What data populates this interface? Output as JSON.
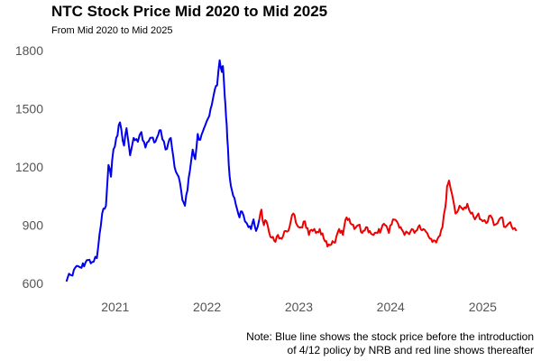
{
  "chart_data": {
    "type": "line",
    "title": "NTC Stock Price Mid 2020 to Mid 2025",
    "subtitle": "From Mid 2020 to Mid 2025",
    "xlabel": "",
    "ylabel": "",
    "x_ticks": [
      "2021",
      "2022",
      "2023",
      "2024",
      "2025"
    ],
    "y_ticks": [
      600,
      900,
      1200,
      1500,
      1800
    ],
    "xlim": [
      "2020-06-15",
      "2025-06-10"
    ],
    "ylim": [
      560,
      1800
    ],
    "grid": false,
    "legend": "none",
    "note_lines": [
      "Note: Blue line shows the stock price before the introduction",
      "of 4/12 policy by NRB and red line shows thereafter"
    ],
    "series": [
      {
        "color": "#0000ee",
        "x": [
          "2020-06-21",
          "2020-07-01",
          "2020-07-15",
          "2020-08-01",
          "2020-08-20",
          "2020-09-10",
          "2020-10-01",
          "2020-10-20",
          "2020-11-10",
          "2020-11-25",
          "2020-12-05",
          "2020-12-15",
          "2020-12-25",
          "2021-01-05",
          "2021-01-20",
          "2021-02-05",
          "2021-02-15",
          "2021-03-01",
          "2021-03-15",
          "2021-04-01",
          "2021-04-15",
          "2021-05-01",
          "2021-05-20",
          "2021-06-10",
          "2021-07-01",
          "2021-07-20",
          "2021-08-10",
          "2021-08-25",
          "2021-09-10",
          "2021-09-25",
          "2021-10-05",
          "2021-10-15",
          "2021-10-25",
          "2021-11-05",
          "2021-11-15",
          "2021-11-25",
          "2021-12-05",
          "2021-12-20",
          "2022-01-05",
          "2022-01-20",
          "2022-02-01",
          "2022-02-10",
          "2022-02-20",
          "2022-03-01",
          "2022-03-05",
          "2022-03-10",
          "2022-03-15",
          "2022-03-20",
          "2022-03-25",
          "2022-04-01",
          "2022-04-10",
          "2022-04-20",
          "2022-05-01",
          "2022-05-10",
          "2022-05-20",
          "2022-06-01",
          "2022-06-15",
          "2022-06-25",
          "2022-07-05",
          "2022-07-15",
          "2022-07-28"
        ],
        "values": [
          610,
          650,
          640,
          690,
          680,
          720,
          710,
          730,
          960,
          1000,
          1210,
          1150,
          1290,
          1350,
          1430,
          1310,
          1400,
          1260,
          1350,
          1330,
          1380,
          1300,
          1350,
          1330,
          1390,
          1290,
          1350,
          1200,
          1150,
          1030,
          1000,
          1080,
          1180,
          1290,
          1240,
          1370,
          1340,
          1400,
          1450,
          1520,
          1600,
          1620,
          1750,
          1690,
          1720,
          1620,
          1520,
          1420,
          1300,
          1150,
          1080,
          1040,
          980,
          940,
          970,
          920,
          890,
          880,
          930,
          870,
          930
        ]
      },
      {
        "color": "#ee0000",
        "x": [
          "2022-07-28",
          "2022-08-05",
          "2022-08-15",
          "2022-08-25",
          "2022-09-10",
          "2022-09-25",
          "2022-10-10",
          "2022-10-25",
          "2022-11-10",
          "2022-11-25",
          "2022-12-10",
          "2022-12-25",
          "2023-01-10",
          "2023-01-25",
          "2023-02-10",
          "2023-02-25",
          "2023-03-10",
          "2023-03-25",
          "2023-04-10",
          "2023-04-25",
          "2023-05-10",
          "2023-05-25",
          "2023-06-10",
          "2023-06-25",
          "2023-07-10",
          "2023-07-25",
          "2023-08-10",
          "2023-08-25",
          "2023-09-10",
          "2023-09-25",
          "2023-10-10",
          "2023-10-25",
          "2023-11-10",
          "2023-11-25",
          "2023-12-10",
          "2023-12-25",
          "2024-01-10",
          "2024-01-25",
          "2024-02-10",
          "2024-02-25",
          "2024-03-10",
          "2024-03-25",
          "2024-04-10",
          "2024-04-25",
          "2024-05-10",
          "2024-05-25",
          "2024-06-10",
          "2024-06-25",
          "2024-07-10",
          "2024-07-25",
          "2024-08-05",
          "2024-08-12",
          "2024-08-20",
          "2024-09-01",
          "2024-09-15",
          "2024-10-01",
          "2024-10-15",
          "2024-11-01",
          "2024-11-15",
          "2024-12-01",
          "2024-12-15",
          "2025-01-01",
          "2025-01-15",
          "2025-02-01",
          "2025-02-15",
          "2025-03-01",
          "2025-03-15",
          "2025-04-01",
          "2025-04-15",
          "2025-05-01",
          "2025-05-15"
        ],
        "values": [
          930,
          980,
          900,
          920,
          840,
          820,
          850,
          830,
          870,
          890,
          960,
          900,
          890,
          920,
          850,
          870,
          860,
          880,
          830,
          790,
          800,
          810,
          880,
          850,
          940,
          910,
          880,
          900,
          860,
          890,
          870,
          850,
          860,
          880,
          900,
          860,
          930,
          920,
          890,
          850,
          860,
          880,
          870,
          900,
          880,
          860,
          830,
          820,
          840,
          890,
          990,
          1100,
          1130,
          1060,
          960,
          1000,
          980,
          1010,
          960,
          930,
          960,
          920,
          910,
          950,
          900,
          910,
          940,
          890,
          910,
          880,
          870
        ]
      }
    ]
  }
}
